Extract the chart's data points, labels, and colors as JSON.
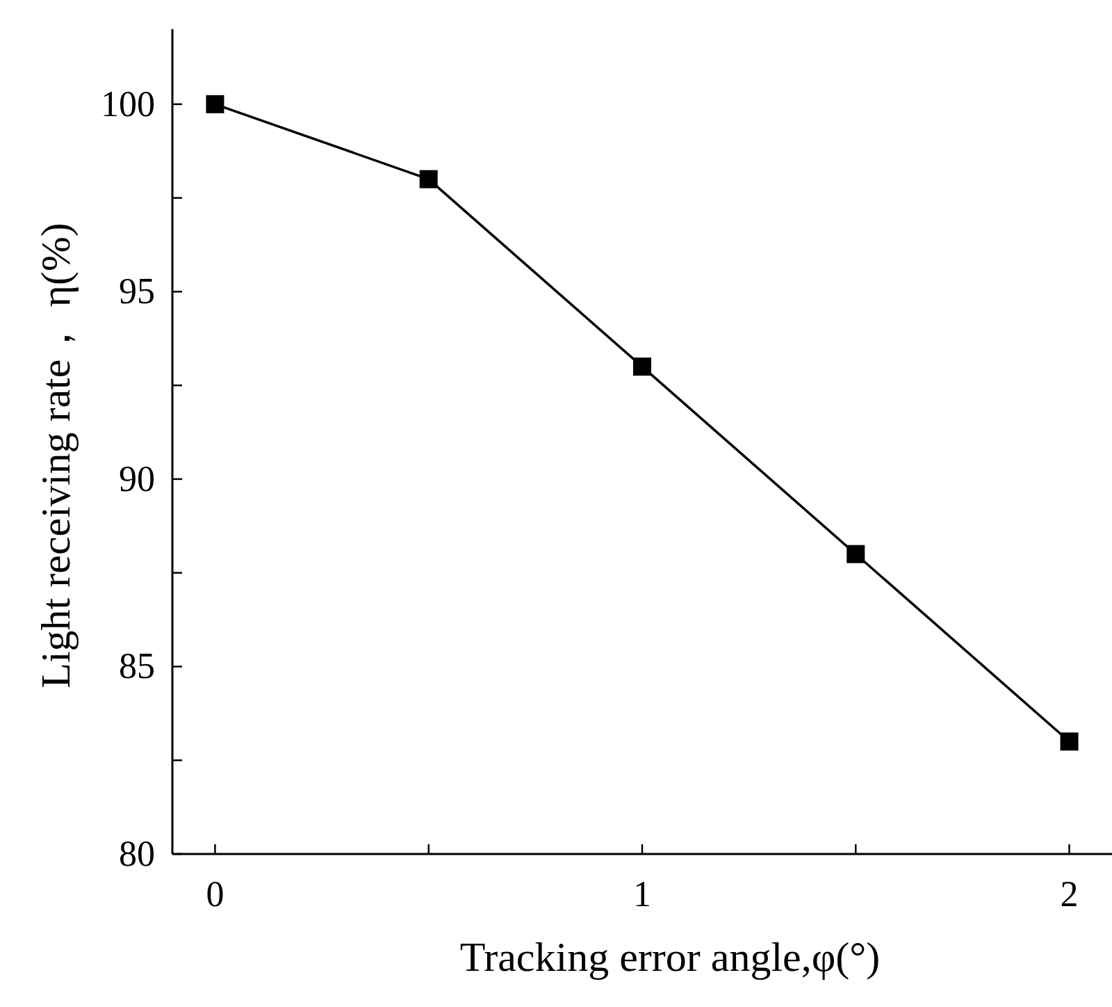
{
  "chart_data": {
    "type": "line",
    "xlabel": "Tracking error angle,φ(°)",
    "ylabel": "Light receiving rate， η(%)",
    "x": [
      0,
      0.5,
      1,
      1.5,
      2
    ],
    "series": [
      {
        "color": "#000000",
        "values": [
          100,
          98,
          93,
          88,
          83
        ]
      }
    ],
    "marker": "square",
    "line_style": "solid",
    "xlim": [
      -0.1,
      2.1
    ],
    "ylim": [
      80,
      102
    ],
    "xticks": [
      0,
      {
        "value": 0.5,
        "label": null
      },
      1,
      {
        "value": 1.5,
        "label": null
      },
      2
    ],
    "yticks": [
      80,
      {
        "value": 82.5,
        "label": null
      },
      85,
      {
        "value": 87.5,
        "label": null
      },
      90,
      {
        "value": 92.5,
        "label": null
      },
      95,
      {
        "value": 97.5,
        "label": null
      },
      100
    ],
    "grid": false
  }
}
